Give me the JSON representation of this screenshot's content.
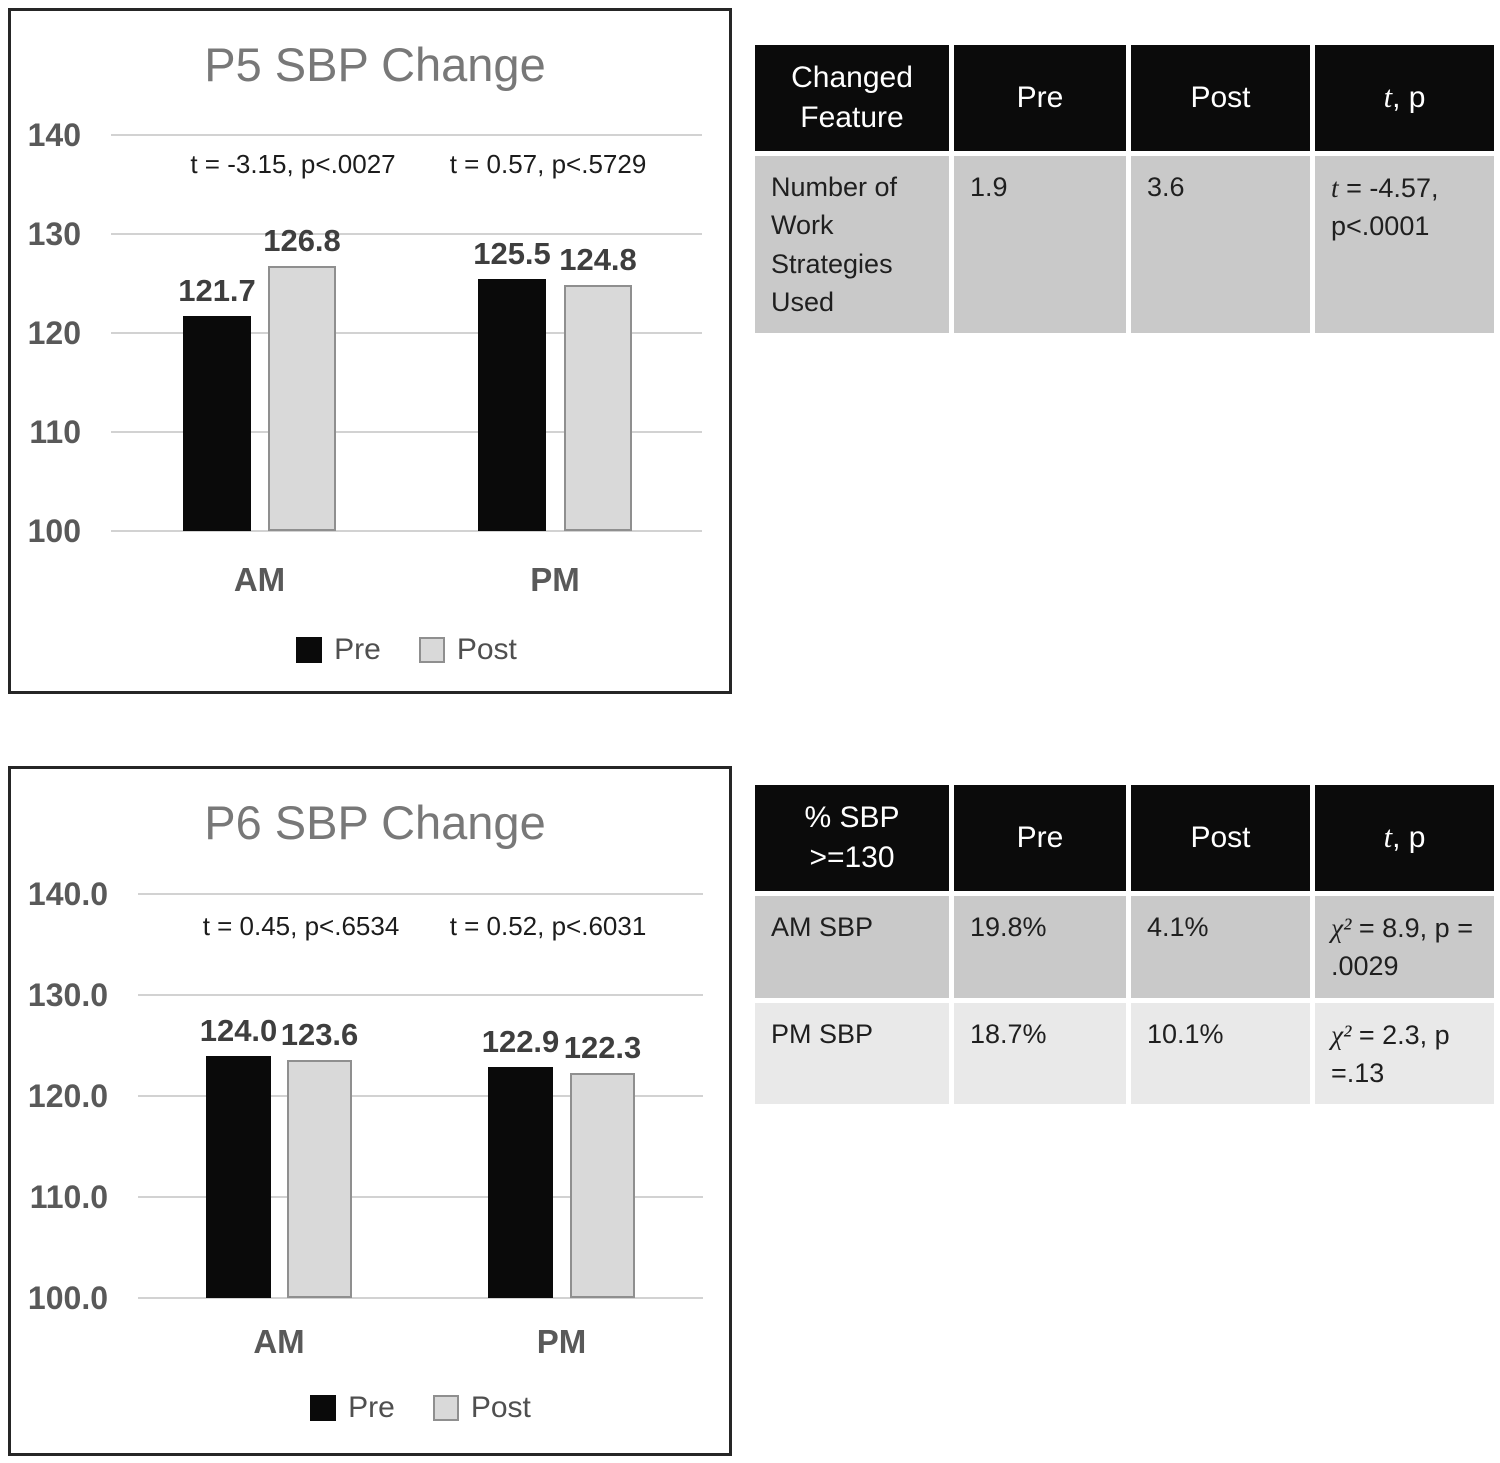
{
  "legend": {
    "pre": "Pre",
    "post": "Post"
  },
  "colors": {
    "pre_bar": "#0a0a0a",
    "post_bar_fill": "#d9d9d9",
    "post_bar_border": "#8f8f8f",
    "table_header_bg": "#0b0b0b",
    "table_header_text": "#ffffff",
    "table_row_dark": "#c9c9c9",
    "table_row_light": "#e9e9e9",
    "gridline": "#d2d2d2",
    "axis_text": "#595959",
    "title_text": "#787878"
  },
  "chart_data": [
    {
      "type": "bar",
      "title": "P5 SBP Change",
      "categories": [
        "AM",
        "PM"
      ],
      "series": [
        {
          "name": "Pre",
          "values": [
            121.7,
            125.5
          ]
        },
        {
          "name": "Post",
          "values": [
            126.8,
            124.8
          ]
        }
      ],
      "annotations": [
        "t = -3.15, p<.0027",
        "t = 0.57, p<.5729"
      ],
      "y_ticks": [
        "140",
        "130",
        "120",
        "110",
        "100"
      ],
      "ylim": [
        100,
        140
      ],
      "grid": true,
      "legend_position": "bottom"
    },
    {
      "type": "bar",
      "title": "P6 SBP Change",
      "categories": [
        "AM",
        "PM"
      ],
      "series": [
        {
          "name": "Pre",
          "values": [
            124.0,
            122.9
          ]
        },
        {
          "name": "Post",
          "values": [
            123.6,
            122.3
          ]
        }
      ],
      "annotations": [
        "t = 0.45, p<.6534",
        "t = 0.52, p<.6031"
      ],
      "y_ticks": [
        "140.0",
        "130.0",
        "120.0",
        "110.0",
        "100.0"
      ],
      "ylim": [
        100,
        140
      ],
      "grid": true,
      "legend_position": "bottom"
    },
    {
      "type": "table",
      "headers": [
        "Changed Feature",
        "Pre",
        "Post",
        "t, p"
      ],
      "rows": [
        [
          "Number of Work Strategies Used",
          "1.9",
          "3.6",
          "t = -4.57, p<.0001"
        ]
      ]
    },
    {
      "type": "table",
      "headers": [
        "% SBP >=130",
        "Pre",
        "Post",
        "t, p"
      ],
      "rows": [
        [
          "AM SBP",
          "19.8%",
          "4.1%",
          "χ² = 8.9, p = .0029"
        ],
        [
          "PM SBP",
          "18.7%",
          "10.1%",
          "χ² = 2.3, p =.13"
        ]
      ]
    }
  ]
}
